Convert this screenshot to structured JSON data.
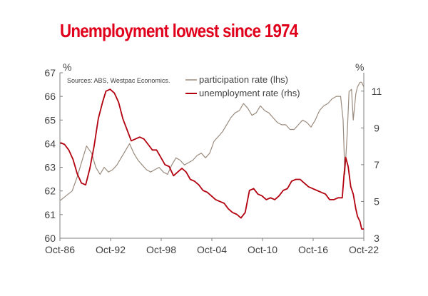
{
  "colors": {
    "title": "#e0001b",
    "participation": "#9a8b7e",
    "unemployment": "#b3000f",
    "axis": "#7f7f7f"
  },
  "chart_data": {
    "type": "line",
    "title": "Unemployment lowest since 1974",
    "source_note": "Sources: ABS, Westpac Economics.",
    "left_axis": {
      "unit": "%",
      "range": [
        60,
        67
      ],
      "ticks": [
        "60",
        "61",
        "62",
        "63",
        "64",
        "65",
        "66",
        "67"
      ]
    },
    "right_axis": {
      "unit": "%",
      "range": [
        3,
        12
      ],
      "ticks": [
        "3",
        "5",
        "7",
        "9",
        "11"
      ]
    },
    "x_axis": {
      "range": [
        1986.75,
        2022.75
      ],
      "ticks": [
        "Oct-86",
        "Oct-92",
        "Oct-98",
        "Oct-04",
        "Oct-10",
        "Oct-16",
        "Oct-22"
      ]
    },
    "legend": {
      "position": "top-right"
    },
    "series": [
      {
        "name": "participation rate (lhs)",
        "axis": "left",
        "x": [
          1986.8,
          1987.5,
          1988.2,
          1988.8,
          1989.3,
          1989.9,
          1990.5,
          1991.0,
          1991.5,
          1992.0,
          1992.5,
          1993.0,
          1993.5,
          1994.0,
          1994.5,
          1995.0,
          1995.5,
          1996.0,
          1996.5,
          1997.0,
          1997.5,
          1998.0,
          1998.5,
          1999.0,
          1999.5,
          2000.0,
          2000.5,
          2001.0,
          2001.5,
          2002.0,
          2002.5,
          2003.0,
          2003.5,
          2004.0,
          2004.5,
          2005.0,
          2005.5,
          2006.0,
          2006.5,
          2007.0,
          2007.5,
          2008.0,
          2008.5,
          2009.0,
          2009.5,
          2010.0,
          2010.5,
          2011.0,
          2011.5,
          2012.0,
          2012.5,
          2013.0,
          2013.5,
          2014.0,
          2014.5,
          2015.0,
          2015.5,
          2016.0,
          2016.5,
          2017.0,
          2017.5,
          2018.0,
          2018.5,
          2019.0,
          2019.5,
          2020.0,
          2020.3,
          2020.5,
          2020.8,
          2021.0,
          2021.3,
          2021.5,
          2021.8,
          2022.0,
          2022.3,
          2022.5,
          2022.75
        ],
        "values": [
          61.6,
          61.8,
          62.0,
          62.6,
          63.2,
          63.9,
          63.6,
          63.0,
          62.7,
          63.0,
          62.8,
          62.9,
          63.1,
          63.4,
          63.7,
          64.0,
          63.6,
          63.3,
          63.1,
          62.9,
          62.8,
          62.9,
          63.0,
          62.8,
          62.7,
          63.1,
          63.4,
          63.3,
          63.1,
          63.2,
          63.3,
          63.5,
          63.6,
          63.4,
          63.6,
          64.1,
          64.3,
          64.5,
          64.8,
          65.1,
          65.3,
          65.4,
          65.7,
          65.5,
          65.2,
          65.3,
          65.6,
          65.4,
          65.3,
          65.1,
          64.9,
          64.8,
          64.8,
          64.6,
          64.6,
          64.8,
          65.0,
          64.9,
          64.7,
          65.0,
          65.4,
          65.6,
          65.7,
          65.9,
          66.0,
          66.0,
          65.0,
          62.7,
          64.5,
          66.2,
          66.3,
          65.0,
          66.1,
          66.4,
          66.6,
          66.6,
          66.4
        ]
      },
      {
        "name": "unemployment rate (rhs)",
        "axis": "right",
        "x": [
          1986.8,
          1987.3,
          1987.8,
          1988.3,
          1988.8,
          1989.3,
          1989.8,
          1990.3,
          1990.8,
          1991.3,
          1991.8,
          1992.2,
          1992.7,
          1993.2,
          1993.7,
          1994.2,
          1994.7,
          1995.2,
          1995.7,
          1996.2,
          1996.7,
          1997.2,
          1997.7,
          1998.2,
          1998.7,
          1999.2,
          1999.7,
          2000.2,
          2000.7,
          2001.2,
          2001.7,
          2002.2,
          2002.7,
          2003.2,
          2003.7,
          2004.2,
          2004.7,
          2005.2,
          2005.7,
          2006.2,
          2006.7,
          2007.2,
          2007.7,
          2008.2,
          2008.7,
          2009.2,
          2009.7,
          2010.2,
          2010.7,
          2011.2,
          2011.7,
          2012.2,
          2012.7,
          2013.2,
          2013.7,
          2014.2,
          2014.7,
          2015.2,
          2015.7,
          2016.2,
          2016.7,
          2017.2,
          2017.7,
          2018.2,
          2018.7,
          2019.2,
          2019.7,
          2020.2,
          2020.4,
          2020.6,
          2020.9,
          2021.2,
          2021.5,
          2021.8,
          2022.0,
          2022.3,
          2022.5,
          2022.75
        ],
        "values": [
          8.2,
          8.1,
          7.8,
          7.3,
          6.5,
          6.0,
          5.9,
          6.8,
          8.0,
          9.5,
          10.4,
          11.0,
          11.1,
          10.9,
          10.4,
          9.5,
          8.9,
          8.3,
          8.4,
          8.5,
          8.4,
          8.1,
          7.8,
          7.8,
          7.4,
          7.0,
          6.9,
          6.4,
          6.6,
          6.8,
          6.6,
          6.2,
          6.1,
          5.9,
          5.6,
          5.5,
          5.3,
          5.1,
          5.0,
          4.9,
          4.6,
          4.4,
          4.3,
          4.1,
          4.4,
          5.6,
          5.7,
          5.4,
          5.3,
          5.1,
          5.2,
          5.1,
          5.3,
          5.6,
          5.7,
          6.1,
          6.2,
          6.2,
          6.0,
          5.8,
          5.7,
          5.6,
          5.5,
          5.4,
          5.1,
          5.1,
          5.2,
          5.2,
          6.4,
          7.4,
          6.9,
          5.8,
          5.4,
          4.6,
          4.2,
          3.9,
          3.5,
          3.5
        ]
      }
    ]
  }
}
